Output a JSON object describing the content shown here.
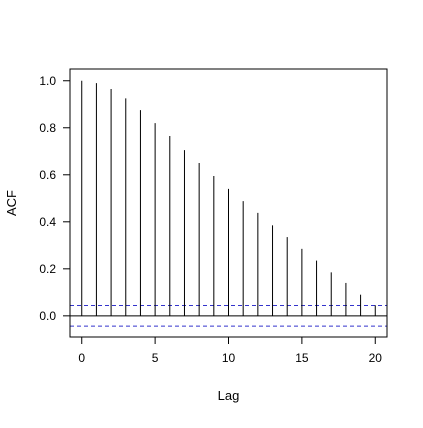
{
  "chart_data": {
    "type": "bar",
    "title": "",
    "xlabel": "Lag",
    "ylabel": "ACF",
    "xlim": [
      -0.8,
      20.8
    ],
    "ylim": [
      -0.09,
      1.05
    ],
    "x": [
      0,
      1,
      2,
      3,
      4,
      5,
      6,
      7,
      8,
      9,
      10,
      11,
      12,
      13,
      14,
      15,
      16,
      17,
      18,
      19,
      20
    ],
    "values": [
      1.0,
      0.99,
      0.965,
      0.925,
      0.875,
      0.82,
      0.765,
      0.705,
      0.65,
      0.595,
      0.54,
      0.488,
      0.438,
      0.385,
      0.335,
      0.285,
      0.235,
      0.185,
      0.14,
      0.09,
      0.045
    ],
    "confidence_bounds": [
      0.044,
      -0.044
    ],
    "x_ticks": [
      0,
      5,
      10,
      15,
      20
    ],
    "y_ticks": [
      0.0,
      0.2,
      0.4,
      0.6,
      0.8,
      1.0
    ],
    "x_tick_labels": [
      "0",
      "5",
      "10",
      "15",
      "20"
    ],
    "y_tick_labels": [
      "0.0",
      "0.2",
      "0.4",
      "0.6",
      "0.8",
      "1.0"
    ],
    "grid": false,
    "colors": {
      "bars": "#000000",
      "bounds": "#3333cc",
      "frame": "#000000"
    }
  }
}
